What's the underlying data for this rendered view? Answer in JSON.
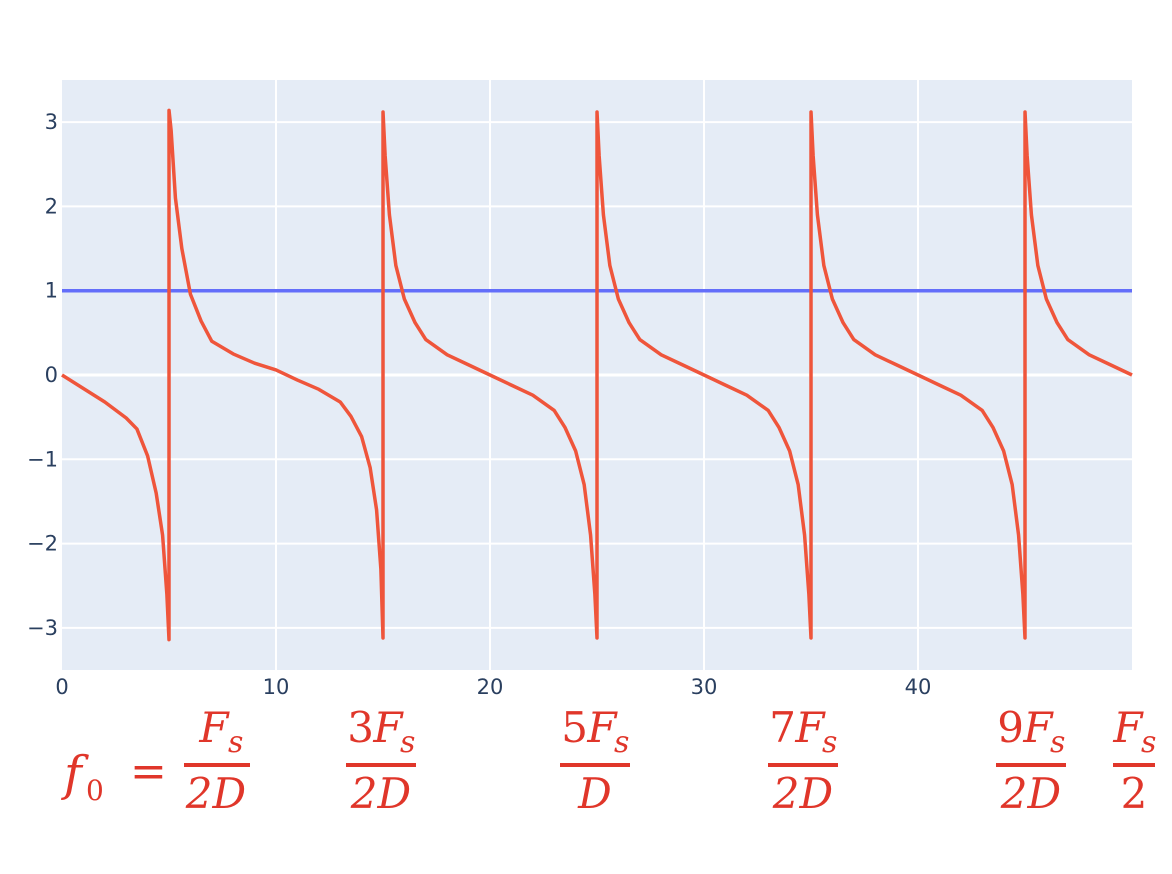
{
  "chart_data": {
    "type": "line",
    "xlim": [
      0,
      50
    ],
    "ylim": [
      -3.5,
      3.5
    ],
    "x_ticks": [
      0,
      10,
      20,
      30,
      40
    ],
    "y_ticks": [
      3,
      2,
      1,
      0,
      -1,
      -2,
      -3
    ],
    "x_tick_labels": [
      "0",
      "10",
      "20",
      "30",
      "40"
    ],
    "y_tick_labels": [
      "3",
      "2",
      "1",
      "0",
      "−1",
      "−2",
      "−3"
    ],
    "grid": true,
    "background_color": "#e5ecf6",
    "series": [
      {
        "color": "#636efa",
        "x": [
          0,
          50
        ],
        "y": [
          1,
          1
        ]
      },
      {
        "color": "#ef553b",
        "x": [
          0,
          1,
          2,
          3,
          3.5,
          4,
          4.4,
          4.7,
          4.9,
          5.0,
          5.001,
          5.1,
          5.3,
          5.6,
          6,
          6.5,
          7,
          8,
          9,
          10,
          11,
          12,
          13,
          13.5,
          14,
          14.4,
          14.7,
          14.9,
          15.0,
          15.001,
          15.1,
          15.3,
          15.6,
          16,
          16.5,
          17,
          18,
          19,
          20,
          21,
          22,
          23,
          23.5,
          24,
          24.4,
          24.7,
          24.9,
          25.0,
          25.001,
          25.1,
          25.3,
          25.6,
          26,
          26.5,
          27,
          28,
          29,
          30,
          31,
          32,
          33,
          33.5,
          34,
          34.4,
          34.7,
          34.9,
          35.0,
          35.001,
          35.1,
          35.3,
          35.6,
          36,
          36.5,
          37,
          38,
          39,
          40,
          41,
          42,
          43,
          43.5,
          44,
          44.4,
          44.7,
          44.9,
          45.0,
          45.001,
          45.1,
          45.3,
          45.6,
          46,
          46.5,
          47,
          48,
          49,
          50
        ],
        "y": [
          0,
          -0.16,
          -0.32,
          -0.51,
          -0.64,
          -0.96,
          -1.4,
          -1.9,
          -2.6,
          -3.14,
          3.14,
          2.9,
          2.1,
          1.5,
          0.96,
          0.64,
          0.4,
          0.25,
          0.14,
          0.06,
          -0.06,
          -0.17,
          -0.32,
          -0.49,
          -0.73,
          -1.1,
          -1.6,
          -2.3,
          -3.12,
          3.12,
          2.6,
          1.9,
          1.3,
          0.9,
          0.62,
          0.42,
          0.24,
          0.12,
          0.0,
          -0.12,
          -0.24,
          -0.42,
          -0.62,
          -0.9,
          -1.3,
          -1.9,
          -2.6,
          -3.12,
          3.12,
          2.6,
          1.9,
          1.3,
          0.9,
          0.62,
          0.42,
          0.24,
          0.12,
          0.0,
          -0.12,
          -0.24,
          -0.42,
          -0.62,
          -0.9,
          -1.3,
          -1.9,
          -2.6,
          -3.12,
          3.12,
          2.6,
          1.9,
          1.3,
          0.9,
          0.62,
          0.42,
          0.24,
          0.12,
          0.0,
          -0.12,
          -0.24,
          -0.42,
          -0.62,
          -0.9,
          -1.3,
          -1.9,
          -2.6,
          -3.12,
          3.12,
          2.6,
          1.9,
          1.3,
          0.9,
          0.62,
          0.42,
          0.24,
          0.12,
          0.0
        ]
      }
    ]
  },
  "annotations": {
    "color": "#e0362a",
    "lead": {
      "var": "f",
      "sub": "0",
      "eq": "="
    },
    "fractions": [
      {
        "num": "F",
        "num_prefix": "",
        "num_sub": "s",
        "den": "2D"
      },
      {
        "num": "F",
        "num_prefix": "3",
        "num_sub": "s",
        "den": "2D"
      },
      {
        "num": "F",
        "num_prefix": "5",
        "num_sub": "s",
        "den": "D"
      },
      {
        "num": "F",
        "num_prefix": "7",
        "num_sub": "s",
        "den": "2D"
      },
      {
        "num": "F",
        "num_prefix": "9",
        "num_sub": "s",
        "den": "2D"
      },
      {
        "num": "F",
        "num_prefix": "",
        "num_sub": "s",
        "den": "2"
      }
    ]
  }
}
